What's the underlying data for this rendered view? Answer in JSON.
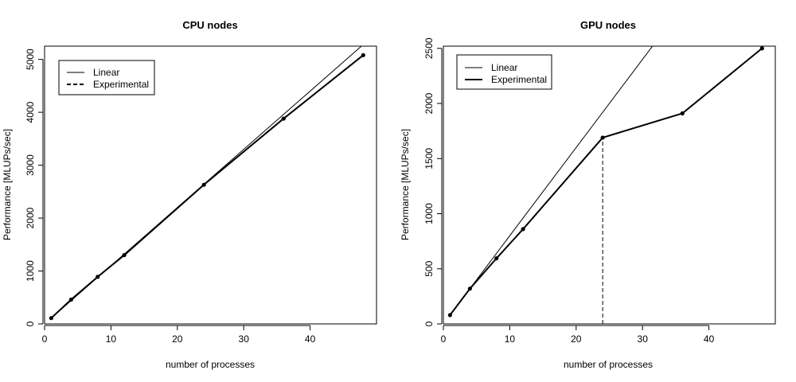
{
  "chart_data": [
    {
      "type": "line",
      "title": "CPU nodes",
      "xlabel": "number of processes",
      "ylabel": "Performance [MLUPs/sec]",
      "xlim": [
        0,
        50
      ],
      "ylim": [
        0,
        5250
      ],
      "xticks": [
        0,
        10,
        20,
        30,
        40
      ],
      "yticks": [
        0,
        1000,
        2000,
        3000,
        4000,
        5000
      ],
      "grid": false,
      "legend": {
        "position": "top-left",
        "entries": [
          "Linear",
          "Experimental"
        ]
      },
      "series": [
        {
          "name": "Linear",
          "style": "thin-solid",
          "x": [
            1,
            48
          ],
          "values": [
            110,
            5280
          ],
          "markers": false
        },
        {
          "name": "Experimental",
          "style": "thick-solid",
          "x": [
            1,
            4,
            8,
            12,
            24,
            36,
            48
          ],
          "values": [
            110,
            460,
            890,
            1300,
            2630,
            3880,
            5080
          ],
          "markers": true
        }
      ]
    },
    {
      "type": "line",
      "title": "GPU nodes",
      "xlabel": "number of processes",
      "ylabel": "Performance [MLUPs/sec]",
      "xlim": [
        0,
        50
      ],
      "ylim": [
        0,
        2520
      ],
      "xticks": [
        0,
        10,
        20,
        30,
        40
      ],
      "yticks": [
        0,
        500,
        1000,
        1500,
        2000,
        2500
      ],
      "grid": false,
      "legend": {
        "position": "top-left",
        "entries": [
          "Linear",
          "Experimental"
        ]
      },
      "reference_line": {
        "x": 24,
        "from": 0,
        "to": 1690,
        "style": "dashed"
      },
      "series": [
        {
          "name": "Linear",
          "style": "thin-solid",
          "x": [
            1,
            48
          ],
          "values": [
            80,
            3840
          ],
          "markers": false
        },
        {
          "name": "Experimental",
          "style": "thick-solid",
          "x": [
            1,
            4,
            8,
            12,
            24,
            36,
            48
          ],
          "values": [
            80,
            320,
            595,
            860,
            1690,
            1910,
            2500
          ],
          "markers": true
        }
      ]
    }
  ]
}
